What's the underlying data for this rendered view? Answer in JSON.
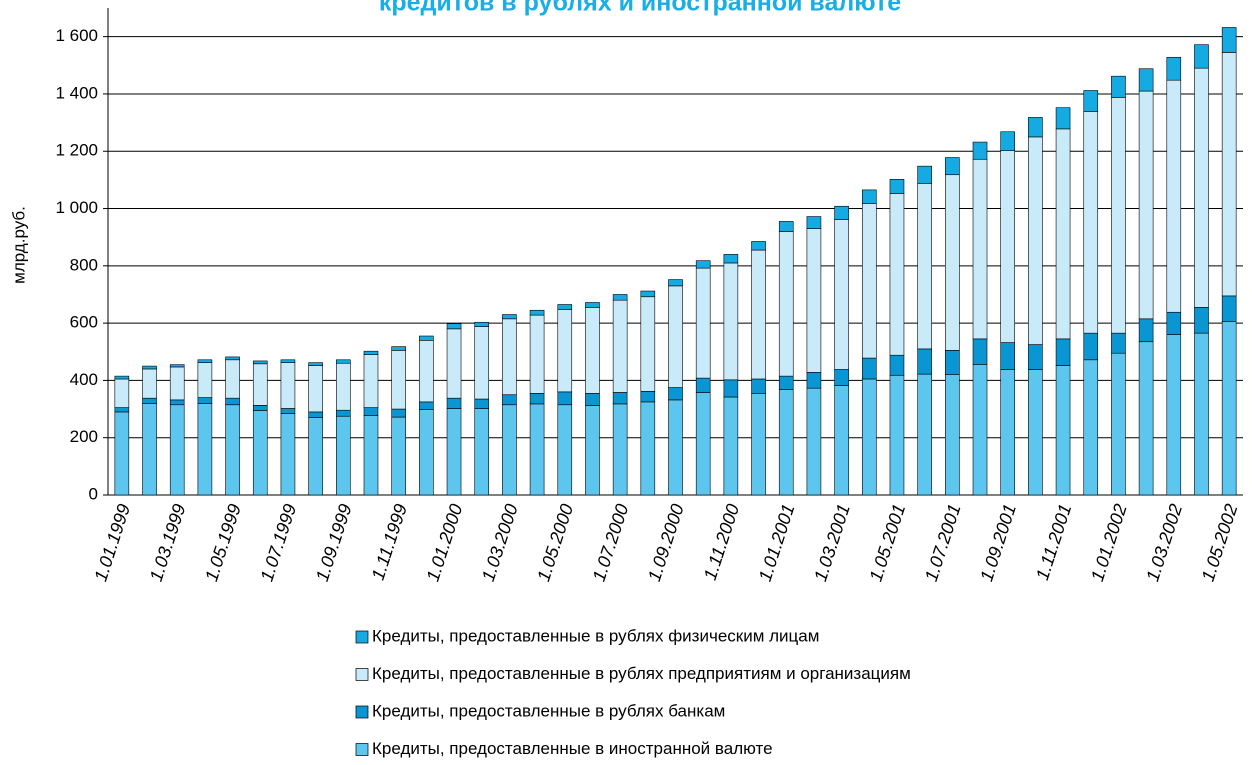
{
  "chart_data": {
    "type": "stacked_bar",
    "title": "кредитов в рублях и иностранной валюте",
    "y_label": "млрд.руб.",
    "categories": [
      "1.01.1999",
      null,
      "1.03.1999",
      null,
      "1.05.1999",
      null,
      "1.07.1999",
      null,
      "1.09.1999",
      null,
      "1.11.1999",
      null,
      "1.01.2000",
      null,
      "1.03.2000",
      null,
      "1.05.2000",
      null,
      "1.07.2000",
      null,
      "1.09.2000",
      null,
      "1.11.2000",
      null,
      "1.01.2001",
      null,
      "1.03.2001",
      null,
      "1.05.2001",
      null,
      "1.07.2001",
      null,
      "1.09.2001",
      null,
      "1.11.2001",
      null,
      "1.01.2002",
      null,
      "1.03.2002",
      null,
      "1.05.2002"
    ],
    "series": [
      {
        "name": "Кредиты, предоставленные в иностранной валюте",
        "color": "#5cc6ef",
        "values": [
          290,
          320,
          315,
          320,
          315,
          295,
          285,
          270,
          275,
          278,
          272,
          298,
          302,
          302,
          315,
          318,
          315,
          312,
          318,
          325,
          332,
          358,
          342,
          355,
          368,
          373,
          382,
          405,
          418,
          422,
          420,
          455,
          438,
          438,
          452,
          472,
          495,
          535,
          560,
          565,
          605
        ]
      },
      {
        "name": "Кредиты, предоставленные в рублях  банкам",
        "color": "#0a95d3",
        "values": [
          15,
          18,
          17,
          20,
          23,
          18,
          17,
          20,
          21,
          27,
          28,
          27,
          36,
          33,
          35,
          37,
          45,
          43,
          40,
          37,
          43,
          50,
          60,
          50,
          47,
          55,
          56,
          73,
          70,
          88,
          85,
          90,
          94,
          87,
          93,
          93,
          70,
          80,
          78,
          90,
          90
        ]
      },
      {
        "name": "Кредиты, предоставленные в рублях предприятиям и организациям",
        "color": "#c9ebf9",
        "values": [
          100,
          102,
          115,
          122,
          134,
          145,
          160,
          162,
          164,
          185,
          205,
          215,
          242,
          253,
          265,
          273,
          288,
          300,
          322,
          330,
          355,
          384,
          408,
          450,
          505,
          502,
          524,
          540,
          564,
          578,
          613,
          627,
          670,
          725,
          733,
          773,
          823,
          795,
          810,
          835,
          850
        ]
      },
      {
        "name": "Кредиты, предоставленные в рублях физическим лицам",
        "color": "#16aae2",
        "values": [
          10,
          10,
          8,
          10,
          10,
          10,
          10,
          10,
          12,
          12,
          13,
          15,
          18,
          15,
          15,
          17,
          17,
          17,
          20,
          20,
          22,
          26,
          30,
          30,
          35,
          42,
          46,
          47,
          50,
          60,
          60,
          60,
          66,
          68,
          74,
          74,
          74,
          78,
          80,
          82,
          87
        ]
      }
    ],
    "ylim": [
      0,
      1700
    ],
    "yticks": [
      0,
      200,
      400,
      600,
      800,
      {
        "value": 1000,
        "label": "1 000"
      },
      {
        "value": 1200,
        "label": "1 200"
      },
      {
        "value": 1400,
        "label": "1 400"
      },
      {
        "value": 1600,
        "label": "1 600"
      }
    ],
    "grid": true
  }
}
